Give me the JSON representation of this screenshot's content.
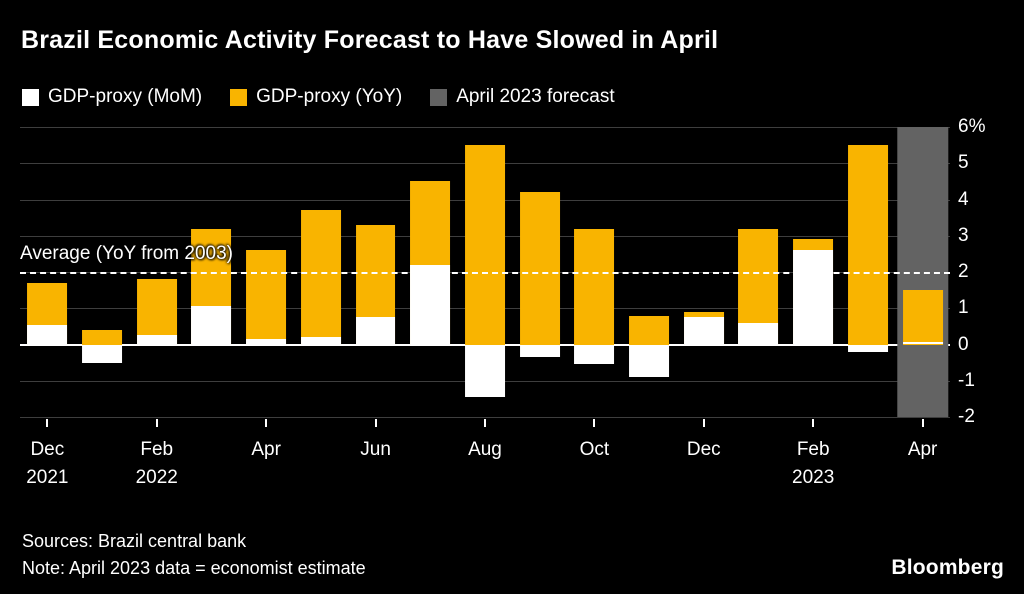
{
  "title": "Brazil Economic Activity Forecast to Have Slowed in April",
  "legend": [
    {
      "label": "GDP-proxy (MoM)",
      "color": "#ffffff"
    },
    {
      "label": "GDP-proxy (YoY)",
      "color": "#f9b400"
    },
    {
      "label": "April 2023 forecast",
      "color": "#636363"
    }
  ],
  "footer": {
    "sources": "Sources: Brazil central bank",
    "note": "Note: April 2023 data = economist estimate",
    "brand": "Bloomberg"
  },
  "chart_data": {
    "type": "bar",
    "title": "Brazil Economic Activity Forecast to Have Slowed in April",
    "ylim": [
      -2,
      6
    ],
    "yticks": [
      {
        "v": 6,
        "label": "6%"
      },
      {
        "v": 5,
        "label": "5"
      },
      {
        "v": 4,
        "label": "4"
      },
      {
        "v": 3,
        "label": "3"
      },
      {
        "v": 2,
        "label": "2"
      },
      {
        "v": 1,
        "label": "1"
      },
      {
        "v": 0,
        "label": "0"
      },
      {
        "v": -1,
        "label": "-1"
      },
      {
        "v": -2,
        "label": "-2"
      }
    ],
    "average": {
      "value": 2.0,
      "label": "Average (YoY from 2003)"
    },
    "series_names": [
      "GDP-proxy (MoM)",
      "GDP-proxy (YoY)"
    ],
    "colors": {
      "mom": "#ffffff",
      "yoy": "#f9b400",
      "forecast": "#636363"
    },
    "columns": [
      {
        "month": "Dec 2021",
        "mom": 0.55,
        "yoy": 1.7,
        "tick": [
          "Dec",
          "2021"
        ]
      },
      {
        "month": "Jan 2022",
        "mom": -0.5,
        "yoy": 0.4
      },
      {
        "month": "Feb 2022",
        "mom": 0.25,
        "yoy": 1.8,
        "tick": [
          "Feb",
          "2022"
        ]
      },
      {
        "month": "Mar 2022",
        "mom": 1.05,
        "yoy": 3.2
      },
      {
        "month": "Apr 2022",
        "mom": 0.15,
        "yoy": 2.6,
        "tick": [
          "Apr"
        ]
      },
      {
        "month": "May 2022",
        "mom": 0.2,
        "yoy": 3.7
      },
      {
        "month": "Jun 2022",
        "mom": 0.75,
        "yoy": 3.3,
        "tick": [
          "Jun"
        ]
      },
      {
        "month": "Jul 2022",
        "mom": 2.2,
        "yoy": 4.5
      },
      {
        "month": "Aug 2022",
        "mom": -1.45,
        "yoy": 5.5,
        "tick": [
          "Aug"
        ]
      },
      {
        "month": "Sep 2022",
        "mom": -0.35,
        "yoy": 4.2
      },
      {
        "month": "Oct 2022",
        "mom": -0.55,
        "yoy": 3.2,
        "tick": [
          "Oct"
        ]
      },
      {
        "month": "Nov 2022",
        "mom": -0.9,
        "yoy": 0.8
      },
      {
        "month": "Dec 2022",
        "mom": 0.75,
        "yoy": 0.9,
        "tick": [
          "Dec"
        ]
      },
      {
        "month": "Jan 2023",
        "mom": 0.6,
        "yoy": 3.2
      },
      {
        "month": "Feb 2023",
        "mom": 2.6,
        "yoy": 2.9,
        "tick": [
          "Feb",
          "2023"
        ]
      },
      {
        "month": "Mar 2023",
        "mom": -0.2,
        "yoy": 5.5
      },
      {
        "month": "Apr 2023",
        "mom": 0.07,
        "yoy": 1.5,
        "tick": [
          "Apr"
        ],
        "forecast": true
      }
    ]
  }
}
